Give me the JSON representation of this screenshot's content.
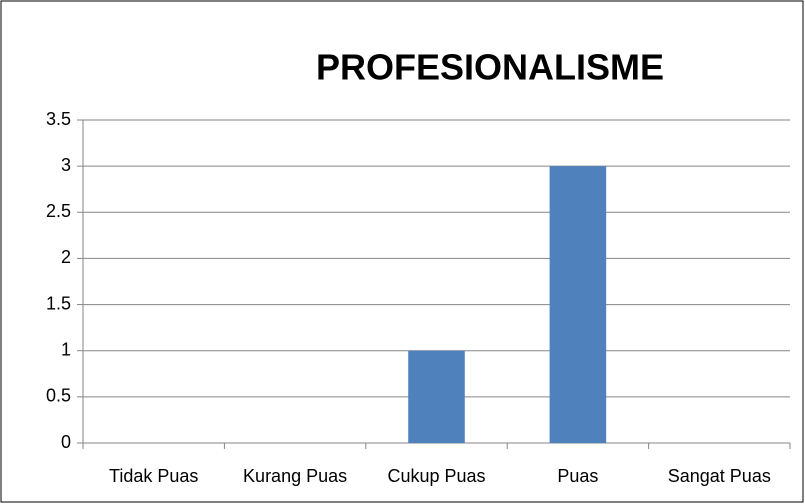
{
  "chart_data": {
    "type": "bar",
    "title": "PROFESIONALISME",
    "categories": [
      "Tidak Puas",
      "Kurang Puas",
      "Cukup Puas",
      "Puas",
      "Sangat Puas"
    ],
    "values": [
      0,
      0,
      1,
      3,
      0
    ],
    "color": "#4f81bd",
    "ylim": [
      0,
      3.5
    ],
    "yticks": [
      0,
      0.5,
      1,
      1.5,
      2,
      2.5,
      3,
      3.5
    ],
    "grid": true
  }
}
